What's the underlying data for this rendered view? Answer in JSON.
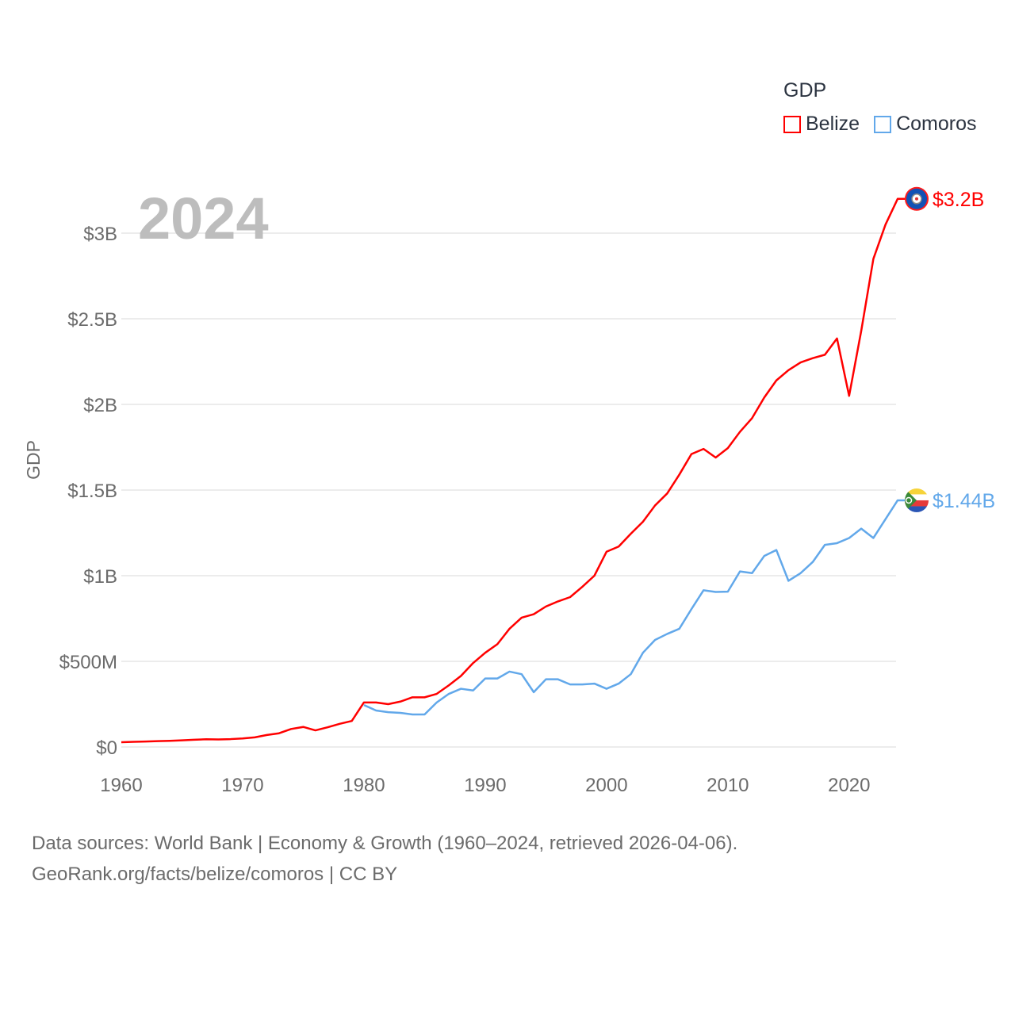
{
  "chart_data": {
    "type": "line",
    "title": "GDP",
    "ylabel": "GDP",
    "xlabel": "",
    "year_overlay": "2024",
    "xlim": [
      1960,
      2024
    ],
    "ylim": [
      0,
      3.2
    ],
    "y_unit": "billion USD",
    "x_ticks": [
      "1960",
      "1970",
      "1980",
      "1990",
      "2000",
      "2010",
      "2020"
    ],
    "y_ticks": [
      {
        "value": 0,
        "label": "$0"
      },
      {
        "value": 0.5,
        "label": "$500M"
      },
      {
        "value": 1,
        "label": "$1B"
      },
      {
        "value": 1.5,
        "label": "$1.5B"
      },
      {
        "value": 2,
        "label": "$2B"
      },
      {
        "value": 2.5,
        "label": "$2.5B"
      },
      {
        "value": 3,
        "label": "$3B"
      }
    ],
    "grid": true,
    "legend_position": "top-right",
    "series": [
      {
        "name": "Belize",
        "color": "#ff0000",
        "end_label": "$3.2B",
        "start_year": 1960,
        "values": [
          0.028,
          0.03,
          0.032,
          0.034,
          0.036,
          0.039,
          0.042,
          0.045,
          0.044,
          0.046,
          0.05,
          0.056,
          0.07,
          0.08,
          0.105,
          0.117,
          0.097,
          0.115,
          0.135,
          0.152,
          0.26,
          0.26,
          0.25,
          0.265,
          0.29,
          0.29,
          0.31,
          0.36,
          0.415,
          0.49,
          0.55,
          0.6,
          0.69,
          0.755,
          0.775,
          0.82,
          0.85,
          0.875,
          0.935,
          1.0,
          1.14,
          1.17,
          1.245,
          1.315,
          1.41,
          1.48,
          1.59,
          1.71,
          1.74,
          1.69,
          1.745,
          1.84,
          1.92,
          2.04,
          2.14,
          2.2,
          2.245,
          2.27,
          2.29,
          2.385,
          2.05,
          2.43,
          2.85,
          3.05,
          3.2
        ]
      },
      {
        "name": "Comoros",
        "color": "#62a8ea",
        "end_label": "$1.44B",
        "start_year": 1980,
        "values": [
          0.245,
          0.213,
          0.203,
          0.199,
          0.19,
          0.19,
          0.26,
          0.31,
          0.34,
          0.33,
          0.4,
          0.4,
          0.44,
          0.425,
          0.32,
          0.395,
          0.395,
          0.365,
          0.365,
          0.37,
          0.34,
          0.37,
          0.425,
          0.55,
          0.625,
          0.66,
          0.69,
          0.805,
          0.915,
          0.905,
          0.907,
          1.025,
          1.015,
          1.115,
          1.15,
          0.97,
          1.015,
          1.08,
          1.18,
          1.19,
          1.22,
          1.275,
          1.22,
          1.33,
          1.44
        ]
      }
    ]
  },
  "legend": {
    "title": "GDP",
    "items": [
      "Belize",
      "Comoros"
    ]
  },
  "footer": {
    "line1": "Data sources: World Bank | Economy & Growth (1960–2024, retrieved 2026-04-06).",
    "line2": "GeoRank.org/facts/belize/comoros | CC BY"
  }
}
